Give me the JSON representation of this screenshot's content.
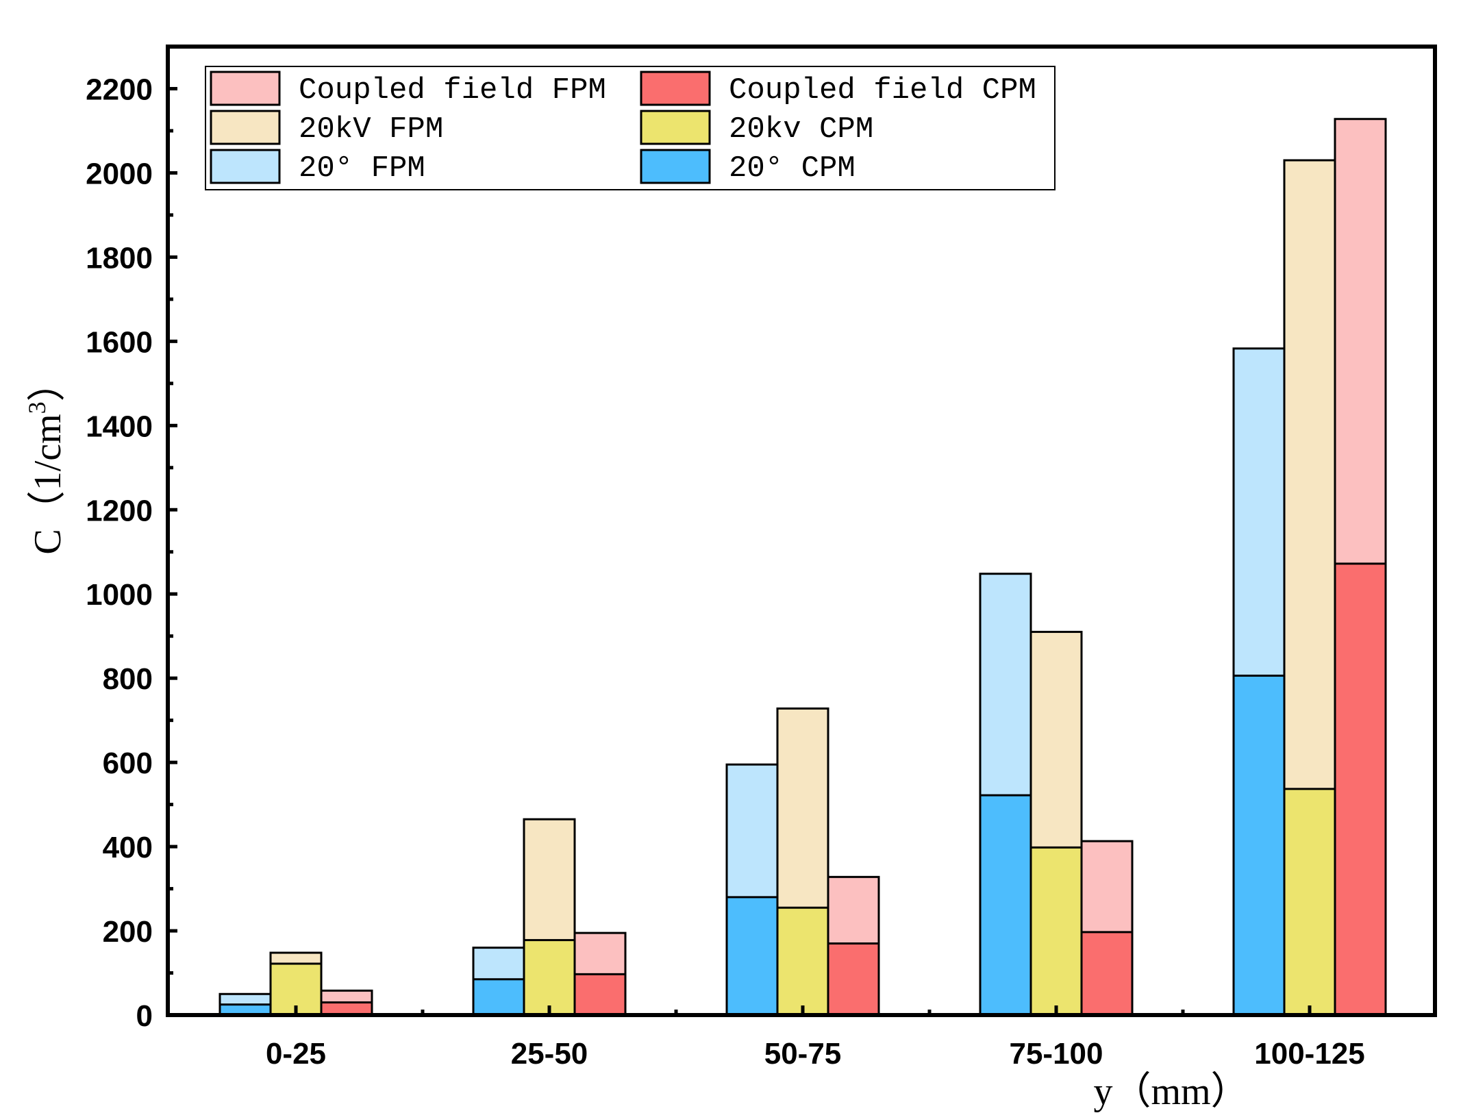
{
  "chart_data": {
    "type": "bar",
    "stacking": "overlay",
    "categories": [
      "0-25",
      "25-50",
      "50-75",
      "75-100",
      "100-125"
    ],
    "groups": [
      {
        "name": "20°",
        "fpm": {
          "name": "20°  FPM",
          "color": "#bde5fd",
          "values": [
            50,
            160,
            595,
            1048,
            1583
          ]
        },
        "cpm": {
          "name": "20°  CPM",
          "color": "#4dbdfd",
          "values": [
            25,
            85,
            280,
            522,
            806
          ]
        }
      },
      {
        "name": "20kV",
        "fpm": {
          "name": "20kV FPM",
          "color": "#f7e6c2",
          "values": [
            148,
            465,
            728,
            910,
            2030
          ]
        },
        "cpm": {
          "name": "20kv CPM",
          "color": "#ece46e",
          "values": [
            122,
            178,
            255,
            398,
            537
          ]
        }
      },
      {
        "name": "Coupled field",
        "fpm": {
          "name": "Coupled field FPM",
          "color": "#fcc0c0",
          "values": [
            58,
            195,
            328,
            413,
            2128
          ]
        },
        "cpm": {
          "name": "Coupled field CPM",
          "color": "#fa6e6e",
          "values": [
            30,
            97,
            170,
            197,
            1072
          ]
        }
      }
    ],
    "legend": [
      [
        "Coupled field FPM",
        "Coupled field CPM"
      ],
      [
        "20kV FPM",
        "20kv CPM"
      ],
      [
        "20°  FPM",
        "20°  CPM"
      ]
    ],
    "xlabel": "y（mm）",
    "ylabel": "C（1/cm",
    "ylabel_superscript": "3",
    "ylabel_close": "）",
    "ylim": [
      0,
      2300
    ],
    "yticks": [
      0,
      200,
      400,
      600,
      800,
      1000,
      1200,
      1400,
      1600,
      1800,
      2000,
      2200
    ],
    "legend_position": "top-left"
  }
}
